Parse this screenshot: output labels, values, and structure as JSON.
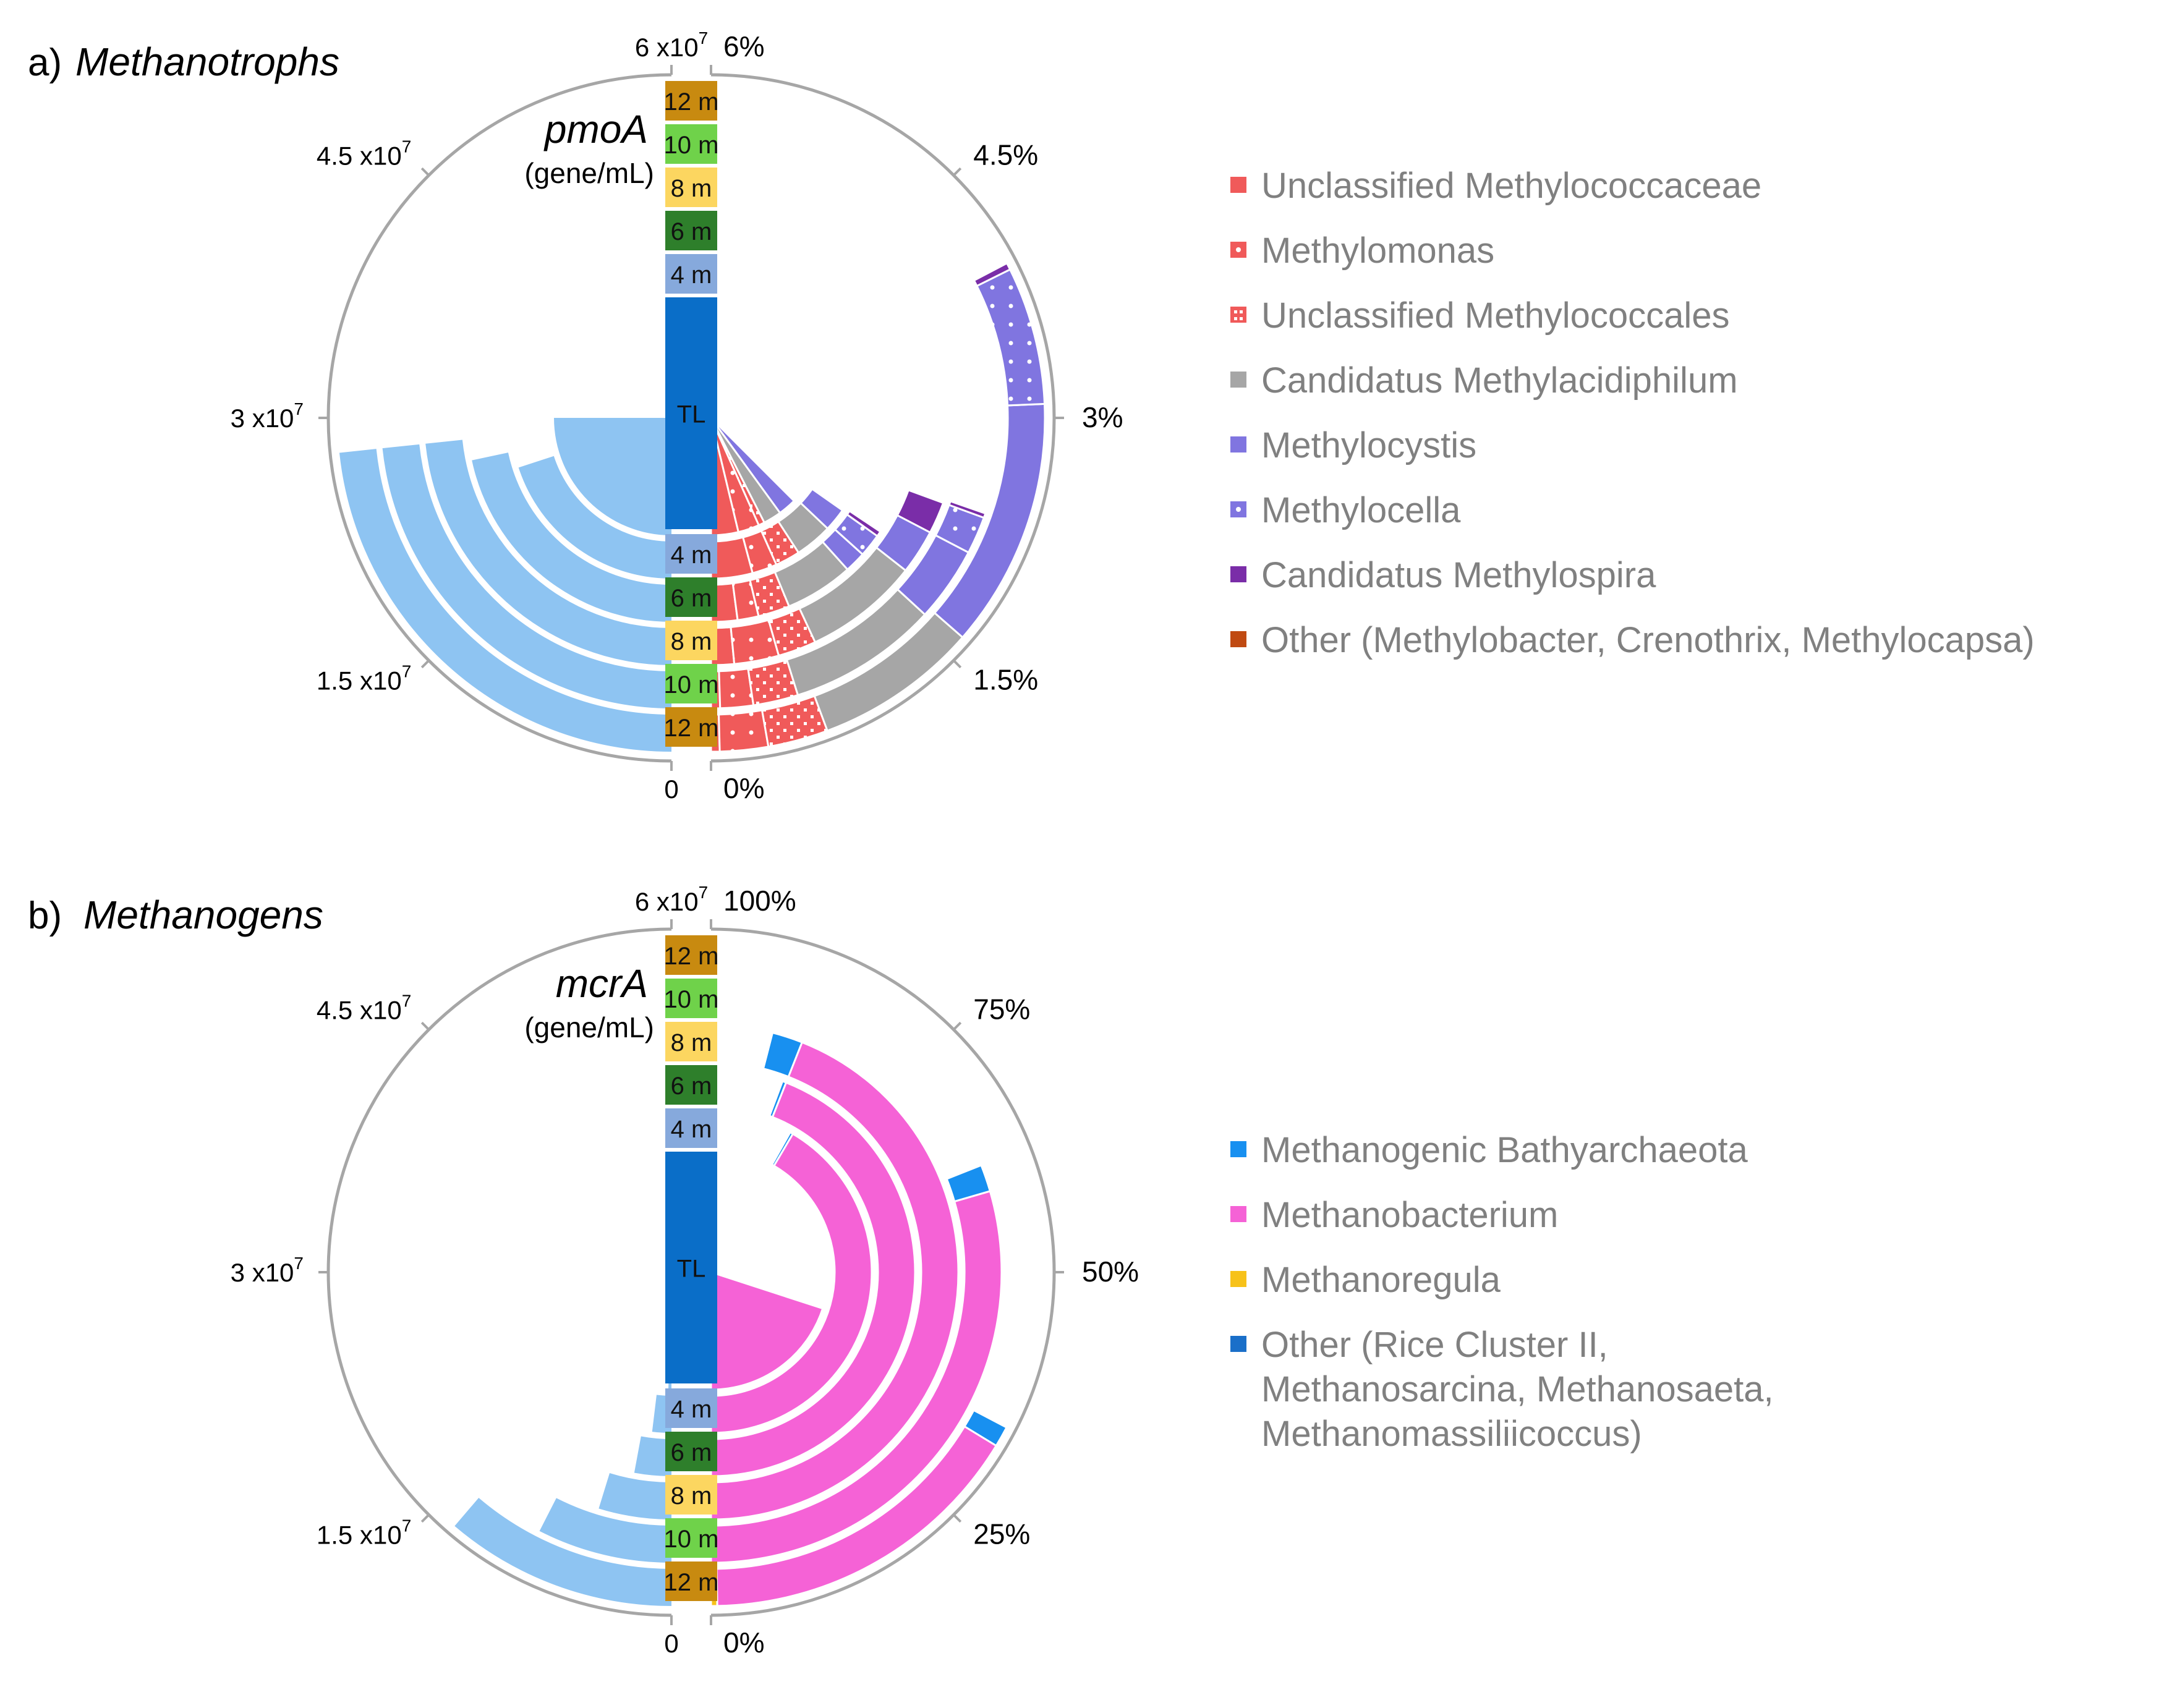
{
  "chart_data": [
    {
      "type": "radial_bar",
      "panel_label": "a)",
      "title": "Methanotrophs",
      "gene": "pmoA",
      "unit": "(gene/mL)",
      "rings_inner_to_outer": [
        "TL",
        "4 m",
        "6 m",
        "8 m",
        "10 m",
        "12 m"
      ],
      "abundance_axis": {
        "range": [
          0,
          60000000
        ],
        "ticks": [
          {
            "value": 0,
            "base": "0",
            "exp": ""
          },
          {
            "value": 15000000,
            "base": "1.5 x10",
            "exp": "7"
          },
          {
            "value": 30000000,
            "base": "3 x10",
            "exp": "7"
          },
          {
            "value": 45000000,
            "base": "4.5 x10",
            "exp": "7"
          },
          {
            "value": 60000000,
            "base": "6 x10",
            "exp": "7"
          }
        ]
      },
      "abundance_values": [
        30000000,
        24000000,
        26000000,
        28000000,
        28000000,
        28000000
      ],
      "composition_axis": {
        "range": [
          0,
          6
        ],
        "unit": "%",
        "ticks": [
          {
            "value": 0,
            "label": "0%"
          },
          {
            "value": 1.5,
            "label": "1.5%"
          },
          {
            "value": 3,
            "label": "3%"
          },
          {
            "value": 4.5,
            "label": "4.5%"
          },
          {
            "value": 6,
            "label": "6%"
          }
        ]
      },
      "legend": [
        {
          "name": "Unclassified Methylococcaceae",
          "color": "#f05a5a",
          "pattern": "solid"
        },
        {
          "name": "Methylomonas",
          "color": "#f05a5a",
          "pattern": "dots"
        },
        {
          "name": "Unclassified Methylococcales",
          "color": "#f05a5a",
          "pattern": "grid"
        },
        {
          "name": "Candidatus Methylacidiphilum",
          "color": "#a6a6a6",
          "pattern": "solid"
        },
        {
          "name": "Methylocystis",
          "color": "#8075e0",
          "pattern": "solid"
        },
        {
          "name": "Methylocella",
          "color": "#8075e0",
          "pattern": "dots"
        },
        {
          "name": "Candidatus Methylospira",
          "color": "#7a2da8",
          "pattern": "solid"
        },
        {
          "name": "Other (Methylobacter, Crenothrix, Methylocapsa)",
          "color": "#c04a12",
          "pattern": "solid"
        }
      ],
      "series_percent": [
        {
          "name": "Unclassified Methylococcaceae",
          "values": [
            0.45,
            0.5,
            0.25,
            0.18,
            0.06,
            0.05
          ]
        },
        {
          "name": "Methylomonas",
          "values": [
            0.35,
            0.3,
            0.2,
            0.35,
            0.22,
            0.28
          ]
        },
        {
          "name": "Unclassified Methylococcales",
          "values": [
            0.1,
            0.3,
            0.3,
            0.3,
            0.3,
            0.35
          ]
        },
        {
          "name": "Candidatus Methylacidiphilum",
          "values": [
            0.3,
            0.45,
            0.65,
            0.9,
            1.0,
            0.95
          ]
        },
        {
          "name": "Methylocystis",
          "values": [
            0.3,
            0.28,
            0.2,
            0.35,
            0.5,
            1.45
          ]
        },
        {
          "name": "Methylocella",
          "values": [
            0.0,
            0.0,
            0.22,
            0.0,
            0.25,
            0.8
          ]
        },
        {
          "name": "Candidatus Methylospira",
          "values": [
            0.0,
            0.0,
            0.05,
            0.25,
            0.03,
            0.04
          ]
        },
        {
          "name": "Other (Methylobacter, Crenothrix, Methylocapsa)",
          "values": [
            0.0,
            0.0,
            0.0,
            0.0,
            0.0,
            0.0
          ]
        }
      ],
      "gap_after_series": [
        [],
        [],
        [
          2
        ],
        [
          0,
          1,
          2,
          3
        ],
        [
          4
        ],
        []
      ]
    },
    {
      "type": "radial_bar",
      "panel_label": "b)",
      "title": "Methanogens",
      "gene": "mcrA",
      "unit": "(gene/mL)",
      "rings_inner_to_outer": [
        "TL",
        "4 m",
        "6 m",
        "8 m",
        "10 m",
        "12 m"
      ],
      "abundance_axis": {
        "range": [
          0,
          60000000
        ],
        "ticks": [
          {
            "value": 0,
            "base": "0",
            "exp": ""
          },
          {
            "value": 15000000,
            "base": "1.5 x10",
            "exp": "7"
          },
          {
            "value": 30000000,
            "base": "3 x10",
            "exp": "7"
          },
          {
            "value": 45000000,
            "base": "4.5 x10",
            "exp": "7"
          },
          {
            "value": 60000000,
            "base": "6 x10",
            "exp": "7"
          }
        ]
      },
      "abundance_values": [
        500000,
        2300000,
        3500000,
        5700000,
        9000000,
        13500000
      ],
      "composition_axis": {
        "range": [
          0,
          100
        ],
        "unit": "%",
        "ticks": [
          {
            "value": 0,
            "label": "0%"
          },
          {
            "value": 25,
            "label": "25%"
          },
          {
            "value": 50,
            "label": "50%"
          },
          {
            "value": 75,
            "label": "75%"
          },
          {
            "value": 100,
            "label": "100%"
          }
        ]
      },
      "legend": [
        {
          "name": "Methanogenic Bathyarchaeota",
          "color": "#1890f0",
          "pattern": "solid"
        },
        {
          "name": "Methanobacterium",
          "color": "#f562d6",
          "pattern": "solid"
        },
        {
          "name": "Methanoregula",
          "color": "#f7c21a",
          "pattern": "solid"
        },
        {
          "name": "Other (Rice Cluster II,\nMethanosarcina, Methanosaeta,\nMethanomassiliicoccus)",
          "color": "#1a6fc9",
          "pattern": "solid"
        }
      ],
      "series_percent": [
        {
          "name": "Methanoregula",
          "values": [
            0,
            0,
            0,
            0,
            0,
            0.6
          ]
        },
        {
          "name": "Methanobacterium",
          "values": [
            40,
            83,
            88,
            88,
            59,
            32
          ]
        },
        {
          "name": "Other (Rice Cluster II, Methanosarcina, Methanosaeta, Methanomassiliicoccus)",
          "values": [
            0,
            0,
            0,
            0,
            0,
            0
          ]
        },
        {
          "name": "Methanogenic Bathyarchaeota",
          "values": [
            0,
            0.6,
            0.6,
            4,
            3,
            2
          ]
        }
      ],
      "gap_after_series": [
        [],
        [
          1
        ],
        [
          1
        ],
        [],
        [
          1
        ],
        [
          1
        ]
      ]
    }
  ]
}
